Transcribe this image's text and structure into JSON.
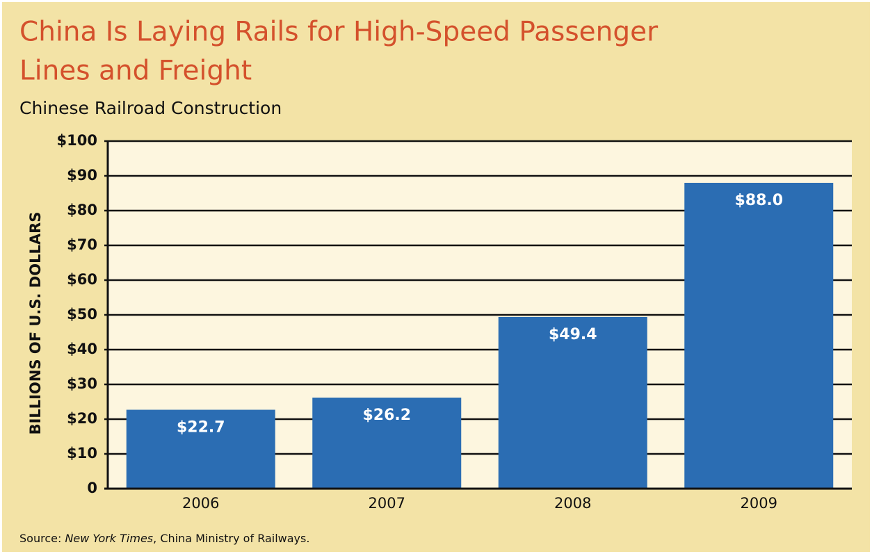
{
  "chart_data": {
    "type": "bar",
    "title": [
      "China Is Laying Rails for High-Speed Passenger",
      "Lines and Freight"
    ],
    "subtitle": "Chinese Railroad Construction",
    "y_axis_label": "BILLIONS OF U.S. DOLLARS",
    "categories": [
      "2006",
      "2007",
      "2008",
      "2009"
    ],
    "values": [
      22.7,
      26.2,
      49.4,
      88.0
    ],
    "value_labels": [
      "$22.7",
      "$26.2",
      "$49.4",
      "$88.0"
    ],
    "color": "#2b6db3",
    "ylim": [
      0,
      100
    ],
    "yticks": [
      0,
      {
        "value": 10,
        "label": "$10"
      },
      {
        "value": 20,
        "label": "$20"
      },
      {
        "value": 30,
        "label": "$30"
      },
      {
        "value": 40,
        "label": "$40"
      },
      {
        "value": 50,
        "label": "$50"
      },
      {
        "value": 60,
        "label": "$60"
      },
      {
        "value": 70,
        "label": "$70"
      },
      {
        "value": 80,
        "label": "$80"
      },
      {
        "value": 90,
        "label": "$90"
      },
      {
        "value": 100,
        "label": "$100"
      }
    ],
    "grid": true,
    "source": {
      "prefix": "Source: ",
      "italic": "New York Times",
      "suffix": ", China Ministry of Railways."
    }
  }
}
